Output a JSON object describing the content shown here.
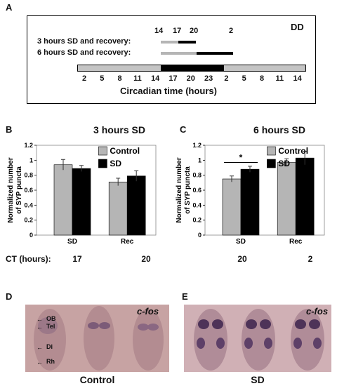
{
  "panel_a": {
    "letter": "A",
    "corner_label": "DD",
    "marker_ticks": [
      "14",
      "17",
      "20",
      "2"
    ],
    "rows": [
      {
        "label": "3 hours SD and recovery:",
        "sd": [
          "14",
          "17"
        ],
        "recovery": [
          "17",
          "20"
        ]
      },
      {
        "label": "6 hours SD and recovery:",
        "sd": [
          "14",
          "20"
        ],
        "recovery": [
          "20",
          "2"
        ]
      }
    ],
    "timeline_ticks": [
      "2",
      "5",
      "8",
      "11",
      "14",
      "17",
      "20",
      "23",
      "2",
      "5",
      "8",
      "11",
      "14"
    ],
    "dark_phase": [
      "14",
      "2"
    ],
    "xlabel": "Circadian time (hours)"
  },
  "ct_label": "CT (hours):",
  "chart_data": [
    {
      "type": "bar",
      "panel": "B",
      "title": "3 hours SD",
      "ylabel": "Normalized number of SYP puncta",
      "ylim": [
        0,
        1.2
      ],
      "yticks": [
        "0",
        "0.2",
        "0.4",
        "0.6",
        "0.8",
        "1",
        "1.2"
      ],
      "categories": [
        "SD",
        "Rec"
      ],
      "ct": [
        "17",
        "20"
      ],
      "series": [
        {
          "name": "Control",
          "values": [
            0.94,
            0.71
          ],
          "errors": [
            0.07,
            0.05
          ]
        },
        {
          "name": "SD",
          "values": [
            0.89,
            0.79
          ],
          "errors": [
            0.04,
            0.07
          ]
        }
      ],
      "legend": "top-right",
      "colors": {
        "Control": "#b5b5b5",
        "SD": "#000000"
      }
    },
    {
      "type": "bar",
      "panel": "C",
      "title": "6 hours SD",
      "ylabel": "Normalized number of SYP puncta",
      "ylim": [
        0,
        1.2
      ],
      "yticks": [
        "0",
        "0.2",
        "0.4",
        "0.6",
        "0.8",
        "1",
        "1.2"
      ],
      "categories": [
        "SD",
        "Rec"
      ],
      "ct": [
        "20",
        "2"
      ],
      "series": [
        {
          "name": "Control",
          "values": [
            0.75,
            0.97
          ],
          "errors": [
            0.04,
            0.05
          ]
        },
        {
          "name": "SD",
          "values": [
            0.88,
            1.03
          ],
          "errors": [
            0.04,
            0.09
          ]
        }
      ],
      "significance": "*",
      "legend": "top-right",
      "colors": {
        "Control": "#b5b5b5",
        "SD": "#000000"
      }
    }
  ],
  "panel_d": {
    "letter": "D",
    "stain": "c-fos",
    "caption": "Control",
    "annotations": [
      "OB",
      "Tel",
      "Di",
      "Rh"
    ]
  },
  "panel_e": {
    "letter": "E",
    "stain": "c-fos",
    "caption": "SD"
  }
}
